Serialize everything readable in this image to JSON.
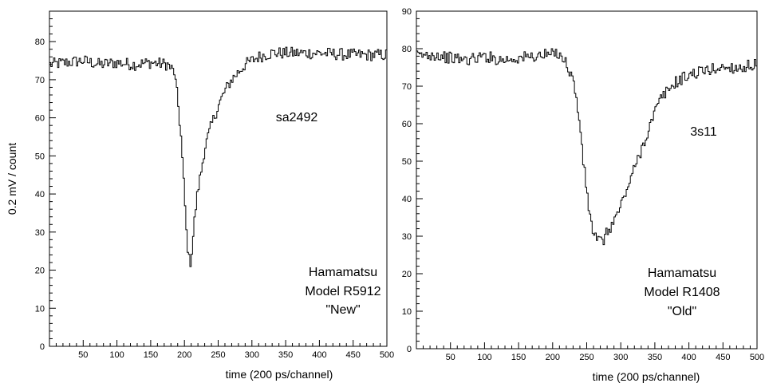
{
  "chart_data": [
    {
      "type": "line",
      "ylabel": "0.2 mV / count",
      "xlabel": "time (200 ps/channel)",
      "xlim": [
        0,
        500
      ],
      "ylim": [
        0,
        88
      ],
      "xticks": [
        "50",
        "100",
        "150",
        "200",
        "250",
        "300",
        "350",
        "400",
        "450",
        "500"
      ],
      "yticks": [
        "0",
        "10",
        "20",
        "30",
        "40",
        "50",
        "60",
        "70",
        "80"
      ],
      "annotations": {
        "sample": "sa2492",
        "line1": "Hamamatsu",
        "line2": "Model R5912",
        "line3": "\"New\""
      },
      "series": [
        {
          "x": [
            0,
            25,
            50,
            75,
            100,
            125,
            150,
            175,
            185,
            190,
            195,
            200,
            203,
            206,
            208,
            210,
            213,
            216,
            220,
            225,
            230,
            240,
            250,
            260,
            270,
            280,
            290,
            300,
            310,
            320,
            330,
            350,
            400,
            450,
            500
          ],
          "y": [
            74,
            74.5,
            75,
            74,
            74.5,
            74,
            74.5,
            74,
            72,
            65,
            55,
            40,
            30,
            24,
            21.5,
            23,
            29,
            35,
            41,
            46,
            52,
            58,
            63,
            67,
            70,
            72,
            74,
            75,
            76,
            76.5,
            77,
            77,
            77,
            76.5,
            76.5
          ]
        }
      ]
    },
    {
      "type": "line",
      "ylabel": "",
      "xlabel": "time (200 ps/channel)",
      "xlim": [
        0,
        500
      ],
      "ylim": [
        0,
        90
      ],
      "xticks": [
        "50",
        "100",
        "150",
        "200",
        "250",
        "300",
        "350",
        "400",
        "450",
        "500"
      ],
      "yticks": [
        "0",
        "10",
        "20",
        "30",
        "40",
        "50",
        "60",
        "70",
        "80",
        "90"
      ],
      "annotations": {
        "sample": "3s11",
        "line1": "Hamamatsu",
        "line2": "Model R1408",
        "line3": "\"Old\""
      },
      "series": [
        {
          "x": [
            0,
            25,
            50,
            75,
            100,
            125,
            150,
            175,
            200,
            210,
            220,
            230,
            240,
            245,
            250,
            255,
            260,
            265,
            270,
            275,
            280,
            290,
            300,
            310,
            320,
            330,
            340,
            350,
            360,
            370,
            380,
            390,
            400,
            420,
            450,
            480,
            500
          ],
          "y": [
            78,
            78.5,
            77.5,
            77,
            78,
            77,
            77.5,
            78,
            78.5,
            79,
            76,
            72,
            60,
            50,
            42,
            35,
            31,
            29,
            28.5,
            29,
            31,
            34,
            38,
            43,
            48,
            53,
            58,
            63,
            67,
            69,
            71,
            72,
            73,
            74,
            75,
            75,
            76
          ]
        }
      ]
    }
  ]
}
